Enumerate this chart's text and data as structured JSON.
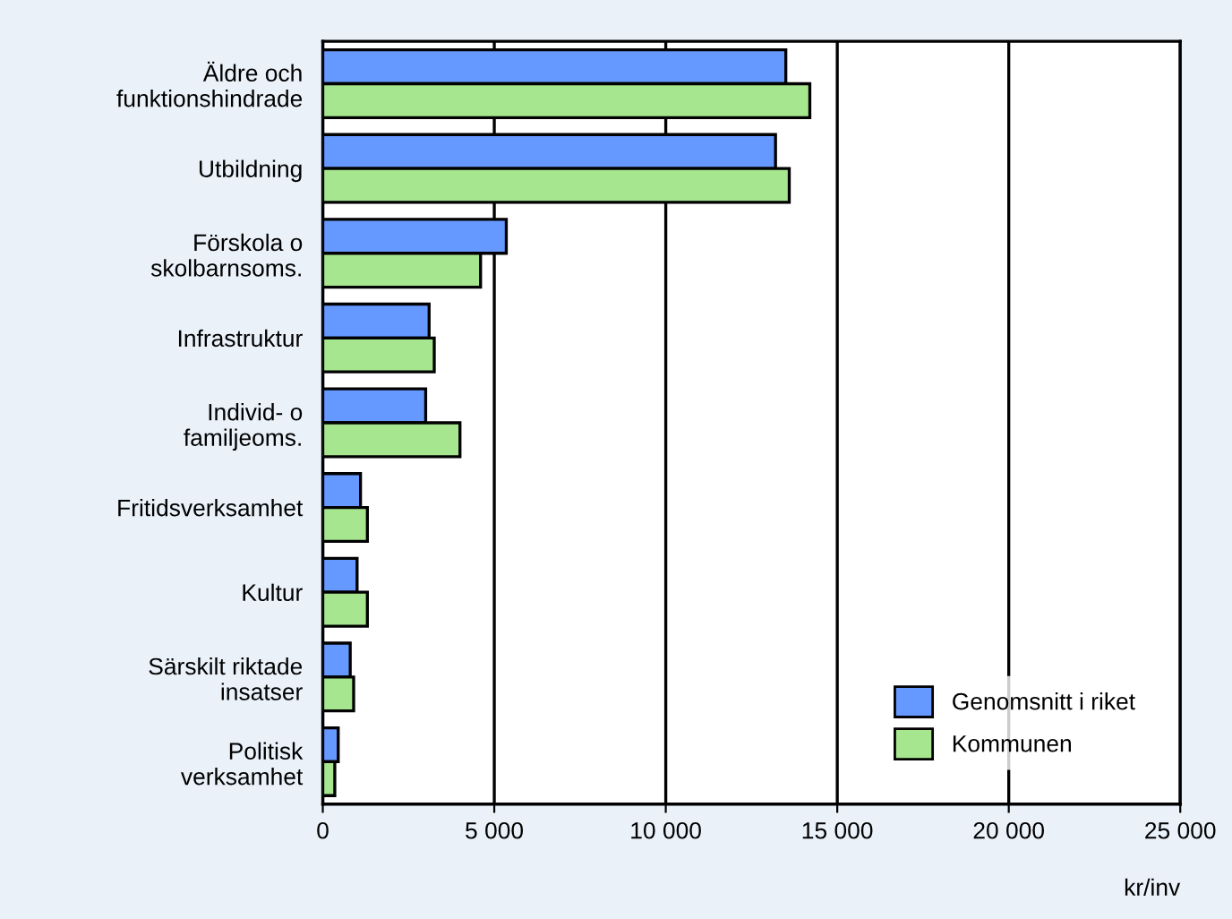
{
  "chart_data": {
    "type": "bar",
    "orientation": "horizontal",
    "categories": [
      "Äldre och\nfunktionshindrade",
      "Utbildning",
      "Förskola o\nskolbarnsoms.",
      "Infrastruktur",
      "Individ- o\nfamiljeoms.",
      "Fritidsverksamhet",
      "Kultur",
      "Särskilt riktade\ninsatser",
      "Politisk\nverksamhet"
    ],
    "series": [
      {
        "name": "Genomsnitt i riket",
        "color": "#6699ff",
        "values": [
          13500,
          13200,
          5350,
          3100,
          3000,
          1100,
          1000,
          800,
          450
        ]
      },
      {
        "name": "Kommunen",
        "color": "#a6e68f",
        "values": [
          14200,
          13600,
          4600,
          3250,
          4000,
          1300,
          1300,
          900,
          350
        ]
      }
    ],
    "xlim": [
      0,
      25000
    ],
    "xticks": [
      {
        "value": 0,
        "label": "0"
      },
      {
        "value": 5000,
        "label": "5 000"
      },
      {
        "value": 10000,
        "label": "10 000"
      },
      {
        "value": 15000,
        "label": "15 000"
      },
      {
        "value": 20000,
        "label": "20 000"
      },
      {
        "value": 25000,
        "label": "25 000"
      }
    ],
    "xlabel": "kr/inv",
    "grid": "x",
    "legend": "bottom right"
  }
}
